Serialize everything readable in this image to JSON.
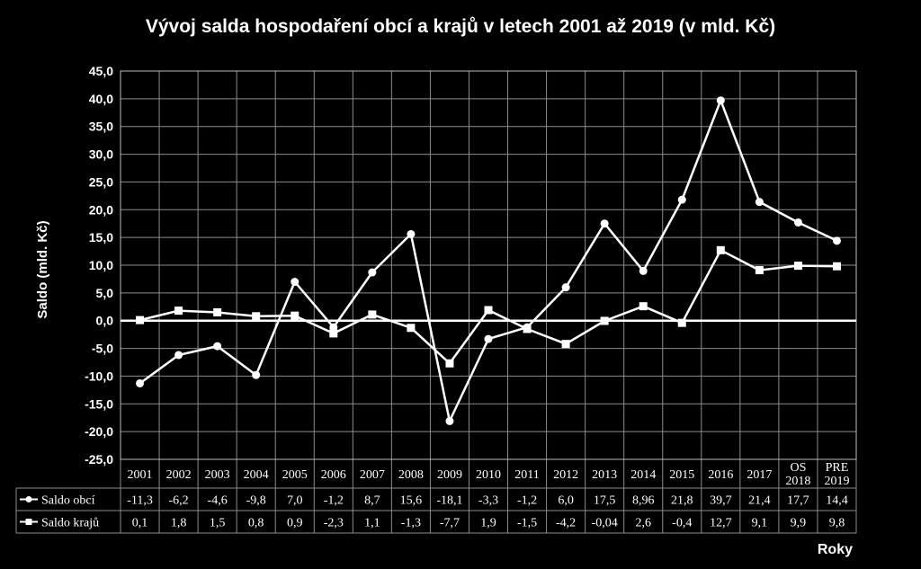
{
  "chart_data": {
    "type": "line",
    "title": "Vývoj salda hospodaření obcí a krajů v letech 2001 až 2019 (v mld. Kč)",
    "ylabel": "Saldo (mld. Kč)",
    "xlabel": "Roky",
    "ylim": [
      -25,
      45
    ],
    "yticks": [
      "45,0",
      "40,0",
      "35,0",
      "30,0",
      "25,0",
      "20,0",
      "15,0",
      "10,0",
      "5,0",
      "0,0",
      "-5,0",
      "-10,0",
      "-15,0",
      "-20,0",
      "-25,0"
    ],
    "categories": [
      [
        "2001"
      ],
      [
        "2002"
      ],
      [
        "2003"
      ],
      [
        "2004"
      ],
      [
        "2005"
      ],
      [
        "2006"
      ],
      [
        "2007"
      ],
      [
        "2008"
      ],
      [
        "2009"
      ],
      [
        "2010"
      ],
      [
        "2011"
      ],
      [
        "2012"
      ],
      [
        "2013"
      ],
      [
        "2014"
      ],
      [
        "2015"
      ],
      [
        "2016"
      ],
      [
        "2017"
      ],
      [
        "OS",
        "2018"
      ],
      [
        "PRE",
        "2019"
      ]
    ],
    "grid": true,
    "legend": "data-table",
    "series": [
      {
        "name": "Saldo obcí",
        "marker": "circle",
        "values": [
          -11.3,
          -6.2,
          -4.6,
          -9.8,
          7.0,
          -1.2,
          8.7,
          15.6,
          -18.1,
          -3.3,
          -1.2,
          6.0,
          17.5,
          8.96,
          21.8,
          39.7,
          21.4,
          17.7,
          14.4
        ],
        "labels": [
          "-11,3",
          "-6,2",
          "-4,6",
          "-9,8",
          "7,0",
          "-1,2",
          "8,7",
          "15,6",
          "-18,1",
          "-3,3",
          "-1,2",
          "6,0",
          "17,5",
          "8,96",
          "21,8",
          "39,7",
          "21,4",
          "17,7",
          "14,4"
        ]
      },
      {
        "name": "Saldo krajů",
        "marker": "square",
        "values": [
          0.1,
          1.8,
          1.5,
          0.8,
          0.9,
          -2.3,
          1.1,
          -1.3,
          -7.7,
          1.9,
          -1.5,
          -4.2,
          -0.04,
          2.6,
          -0.4,
          12.7,
          9.1,
          9.9,
          9.8
        ],
        "labels": [
          "0,1",
          "1,8",
          "1,5",
          "0,8",
          "0,9",
          "-2,3",
          "1,1",
          "-1,3",
          "-7,7",
          "1,9",
          "-1,5",
          "-4,2",
          "-0,04",
          "2,6",
          "-0,4",
          "12,7",
          "9,1",
          "9,9",
          "9,8"
        ]
      }
    ]
  }
}
